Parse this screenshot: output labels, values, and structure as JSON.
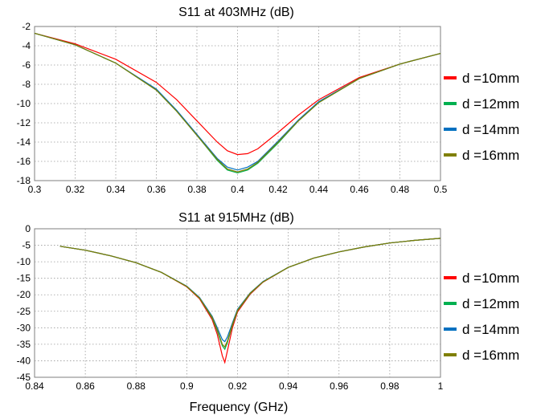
{
  "chart_data": [
    {
      "type": "line",
      "title": "S11 at 403MHz (dB)",
      "xlabel": "",
      "ylabel": "",
      "xlim": [
        0.3,
        0.5
      ],
      "ylim": [
        -18,
        -2
      ],
      "xticks": [
        0.3,
        0.32,
        0.34,
        0.36,
        0.38,
        0.4,
        0.42,
        0.44,
        0.46,
        0.48,
        0.5
      ],
      "yticks": [
        -2,
        -4,
        -6,
        -8,
        -10,
        -12,
        -14,
        -16,
        -18
      ],
      "xtick_labels": [
        "0.3",
        "0.32",
        "0.34",
        "0.36",
        "0.38",
        "0.4",
        "0.42",
        "0.44",
        "0.46",
        "0.48",
        "0.5"
      ],
      "ytick_labels": [
        "-2",
        "-4",
        "-6",
        "-8",
        "-10",
        "-12",
        "-14",
        "-16",
        "-18"
      ],
      "grid": true,
      "legend_position": "right",
      "x": [
        0.3,
        0.32,
        0.34,
        0.36,
        0.37,
        0.38,
        0.39,
        0.395,
        0.4,
        0.405,
        0.41,
        0.42,
        0.43,
        0.44,
        0.46,
        0.48,
        0.5
      ],
      "series": [
        {
          "name": "d =10mm",
          "color": "#ff0000",
          "values": [
            -2.7,
            -3.8,
            -5.4,
            -7.8,
            -9.6,
            -11.8,
            -14.0,
            -14.9,
            -15.3,
            -15.2,
            -14.7,
            -13.0,
            -11.2,
            -9.6,
            -7.3,
            -5.9,
            -4.8
          ]
        },
        {
          "name": "d =12mm",
          "color": "#00b050",
          "values": [
            -2.7,
            -3.9,
            -5.8,
            -8.6,
            -10.8,
            -13.3,
            -15.9,
            -16.9,
            -17.2,
            -16.9,
            -16.2,
            -14.1,
            -11.8,
            -9.9,
            -7.4,
            -5.9,
            -4.8
          ]
        },
        {
          "name": "d =14mm",
          "color": "#0070c0",
          "values": [
            -2.7,
            -3.9,
            -5.8,
            -8.5,
            -10.7,
            -13.2,
            -15.7,
            -16.6,
            -16.9,
            -16.6,
            -16.0,
            -13.9,
            -11.7,
            -9.8,
            -7.4,
            -5.9,
            -4.8
          ]
        },
        {
          "name": "d =16mm",
          "color": "#7f7f00",
          "values": [
            -2.7,
            -3.9,
            -5.8,
            -8.6,
            -10.8,
            -13.3,
            -15.8,
            -16.8,
            -17.1,
            -16.8,
            -16.1,
            -14.0,
            -11.8,
            -9.9,
            -7.4,
            -5.9,
            -4.8
          ]
        }
      ]
    },
    {
      "type": "line",
      "title": "S11 at 915MHz (dB)",
      "xlabel": "Frequency (GHz)",
      "ylabel": "",
      "xlim": [
        0.84,
        1
      ],
      "ylim": [
        -45,
        0
      ],
      "xticks": [
        0.84,
        0.86,
        0.88,
        0.9,
        0.92,
        0.94,
        0.96,
        0.98,
        1
      ],
      "yticks": [
        0,
        -5,
        -10,
        -15,
        -20,
        -25,
        -30,
        -35,
        -40,
        -45
      ],
      "xtick_labels": [
        "0.84",
        "0.86",
        "0.88",
        "0.9",
        "0.92",
        "0.94",
        "0.96",
        "0.98",
        "1"
      ],
      "ytick_labels": [
        "0",
        "-5",
        "-10",
        "-15",
        "-20",
        "-25",
        "-30",
        "-35",
        "-40",
        "-45"
      ],
      "grid": true,
      "legend_position": "right",
      "x": [
        0.85,
        0.86,
        0.87,
        0.88,
        0.89,
        0.9,
        0.905,
        0.91,
        0.912,
        0.914,
        0.915,
        0.916,
        0.918,
        0.92,
        0.925,
        0.93,
        0.94,
        0.95,
        0.96,
        0.97,
        0.98,
        0.99,
        1.0
      ],
      "series": [
        {
          "name": "d =10mm",
          "color": "#ff0000",
          "values": [
            -5.3,
            -6.5,
            -8.2,
            -10.3,
            -13.2,
            -17.6,
            -21.2,
            -27.5,
            -32.0,
            -38.5,
            -40.5,
            -37.0,
            -30.0,
            -25.2,
            -19.8,
            -16.2,
            -11.7,
            -8.9,
            -7.0,
            -5.5,
            -4.3,
            -3.5,
            -2.9
          ]
        },
        {
          "name": "d =12mm",
          "color": "#00b050",
          "values": [
            -5.3,
            -6.5,
            -8.2,
            -10.3,
            -13.2,
            -17.5,
            -21.0,
            -27.0,
            -31.0,
            -35.5,
            -36.5,
            -34.5,
            -29.2,
            -24.8,
            -19.6,
            -16.1,
            -11.7,
            -8.9,
            -7.0,
            -5.5,
            -4.3,
            -3.5,
            -2.9
          ]
        },
        {
          "name": "d =14mm",
          "color": "#0070c0",
          "values": [
            -5.3,
            -6.5,
            -8.2,
            -10.3,
            -13.2,
            -17.4,
            -20.8,
            -26.5,
            -30.0,
            -33.6,
            -34.2,
            -32.8,
            -28.5,
            -24.4,
            -19.4,
            -16.0,
            -11.7,
            -8.9,
            -7.0,
            -5.5,
            -4.3,
            -3.5,
            -2.9
          ]
        },
        {
          "name": "d =16mm",
          "color": "#7f7f00",
          "values": [
            -5.3,
            -6.5,
            -8.2,
            -10.3,
            -13.2,
            -17.5,
            -21.0,
            -26.8,
            -30.6,
            -35.0,
            -35.8,
            -34.0,
            -29.0,
            -24.7,
            -19.5,
            -16.1,
            -11.7,
            -8.9,
            -7.0,
            -5.5,
            -4.3,
            -3.5,
            -2.9
          ]
        }
      ]
    }
  ]
}
